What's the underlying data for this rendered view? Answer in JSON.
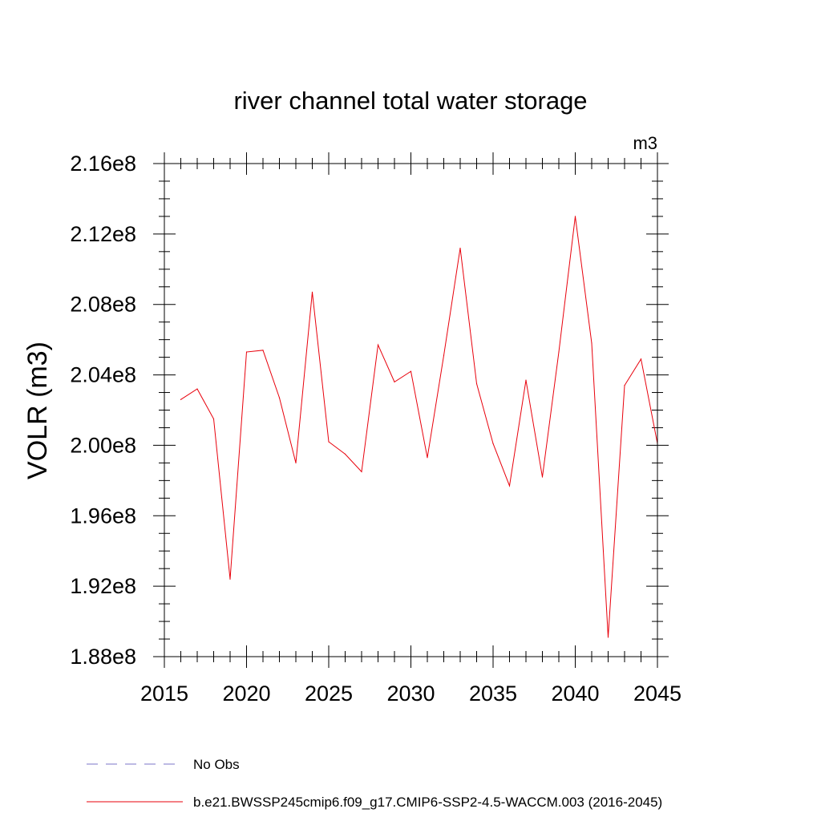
{
  "chart_data": {
    "type": "line",
    "title": "river channel total water storage",
    "units_label": "m3",
    "xlabel": "",
    "ylabel": "VOLR  (m3)",
    "xlim": [
      2015,
      2045
    ],
    "ylim": [
      188000000,
      216000000
    ],
    "x_ticks": [
      2015,
      2020,
      2025,
      2030,
      2035,
      2040,
      2045
    ],
    "x_tick_labels": [
      "2015",
      "2020",
      "2025",
      "2030",
      "2035",
      "2040",
      "2045"
    ],
    "y_ticks": [
      188000000,
      192000000,
      196000000,
      200000000,
      204000000,
      208000000,
      212000000,
      216000000
    ],
    "y_tick_labels": [
      "1.88e8",
      "1.92e8",
      "1.96e8",
      "2.00e8",
      "2.04e8",
      "2.08e8",
      "2.12e8",
      "2.16e8"
    ],
    "grid": false,
    "legend_position": "bottom-left",
    "legend": [
      {
        "label": "No Obs",
        "color": "#7b76c8",
        "style": "dashed"
      },
      {
        "label": "b.e21.BWSSP245cmip6.f09_g17.CMIP6-SSP2-4.5-WACCM.003 (2016-2045)",
        "color": "#e8000b",
        "style": "solid"
      }
    ],
    "series": [
      {
        "name": "b.e21.BWSSP245cmip6.f09_g17.CMIP6-SSP2-4.5-WACCM.003 (2016-2045)",
        "color": "#e8000b",
        "x": [
          2016,
          2017,
          2018,
          2019,
          2020,
          2021,
          2022,
          2023,
          2024,
          2025,
          2026,
          2027,
          2028,
          2029,
          2030,
          2031,
          2032,
          2033,
          2034,
          2035,
          2036,
          2037,
          2038,
          2039,
          2040,
          2041,
          2042,
          2043,
          2044,
          2045
        ],
        "values": [
          202600000,
          203200000,
          201500000,
          192400000,
          205300000,
          205400000,
          202700000,
          199000000,
          208700000,
          200200000,
          199500000,
          198500000,
          205700000,
          203600000,
          204200000,
          199300000,
          205100000,
          211200000,
          203500000,
          200100000,
          197700000,
          203700000,
          198200000,
          205300000,
          213000000,
          205800000,
          189100000,
          203400000,
          204900000,
          200100000
        ]
      }
    ]
  }
}
